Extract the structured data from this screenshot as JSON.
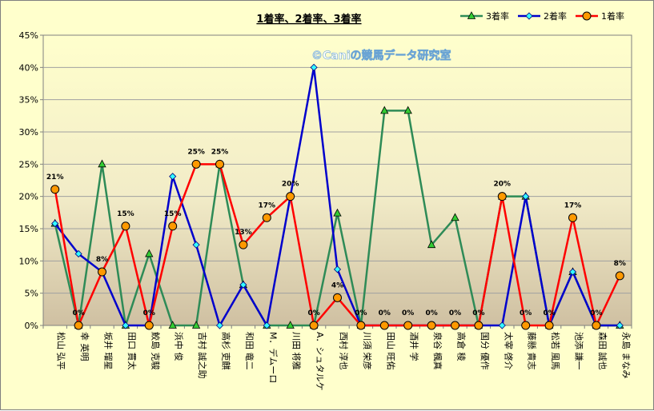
{
  "chart_data": {
    "type": "line",
    "title": "1着率、2着率、3着率",
    "watermark": "©Caniの競馬データ研究室",
    "ylim": [
      0,
      45
    ],
    "yticks": [
      "0%",
      "5%",
      "10%",
      "15%",
      "20%",
      "25%",
      "30%",
      "35%",
      "40%",
      "45%"
    ],
    "ytick_values": [
      0,
      5,
      10,
      15,
      20,
      25,
      30,
      35,
      40,
      45
    ],
    "categories": [
      "松山 弘平",
      "幸 英明",
      "坂井 瑠星",
      "田口 貫太",
      "鮫島 克駿",
      "浜中 俊",
      "吉村 誠之助",
      "高杉 吏麒",
      "和田 竜二",
      "M．デムーロ",
      "川田 将雅",
      "A．シュタルケ",
      "西村 淳也",
      "川須 栄彦",
      "田山 旺佑",
      "酒井 学",
      "泉谷 楓真",
      "高倉 稜",
      "国分 優作",
      "太宰 啓介",
      "藤懸 貴志",
      "松若 風馬",
      "池添 謙一",
      "森田 誠也",
      "永島 まなみ"
    ],
    "grid": true,
    "legend_position": "top-right",
    "series": [
      {
        "name": "3着率",
        "color": "#2e8b57",
        "marker": "triangle",
        "marker_fill": "#33cc33",
        "values": [
          15.8,
          0,
          25,
          0,
          11.1,
          0,
          0,
          25,
          6.3,
          0,
          0,
          0,
          17.4,
          0,
          33.3,
          33.3,
          12.5,
          16.7,
          0,
          20,
          20,
          0,
          8.3,
          0,
          0
        ]
      },
      {
        "name": "2着率",
        "color": "#0000cc",
        "marker": "diamond",
        "marker_fill": "#33ffff",
        "values": [
          15.8,
          11.1,
          8.3,
          0,
          0,
          23.1,
          12.5,
          0,
          6.3,
          0,
          20,
          40,
          8.7,
          0,
          0,
          0,
          0,
          0,
          0,
          0,
          20,
          0,
          8.3,
          0,
          0
        ]
      },
      {
        "name": "1着率",
        "color": "#ff0000",
        "marker": "circle",
        "marker_fill": "#ff9900",
        "values": [
          21.1,
          0,
          8.3,
          15.4,
          0,
          15.4,
          25,
          25,
          12.5,
          16.7,
          20,
          0,
          4.3,
          0,
          0,
          0,
          0,
          0,
          0,
          20,
          0,
          0,
          16.7,
          0,
          7.7
        ],
        "labels": [
          "21%",
          "0%",
          "8%",
          "15%",
          "0%",
          "15%",
          "25%",
          "25%",
          "13%",
          "17%",
          "20%",
          "0%",
          "4%",
          "0%",
          "0%",
          "0%",
          "0%",
          "0%",
          "0%",
          "20%",
          "0%",
          "0%",
          "17%",
          "0%",
          "8%"
        ]
      }
    ]
  }
}
